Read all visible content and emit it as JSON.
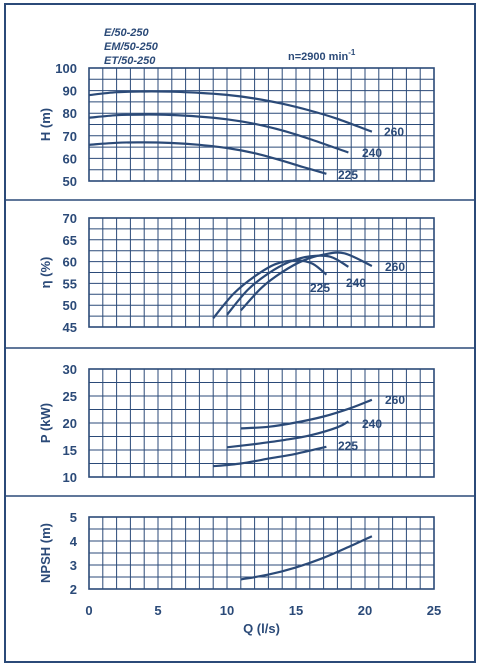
{
  "header": {
    "models": [
      "E/50-250",
      "EM/50-250",
      "ET/50-250"
    ],
    "speed_label": "n=2900 min",
    "speed_superscript": "-1"
  },
  "colors": {
    "frame": "#2b4a78",
    "grid": "#2b4a78",
    "curve": "#2b4a78",
    "text": "#2b4a78",
    "background": "#ffffff"
  },
  "chart_data": [
    {
      "type": "line",
      "ylabel": "H (m)",
      "xlim": [
        0,
        25
      ],
      "ylim": [
        50,
        100
      ],
      "yticks": [
        50,
        60,
        70,
        80,
        90,
        100
      ],
      "series": [
        {
          "name": "260",
          "x": [
            0,
            2,
            4,
            6,
            8,
            10,
            12,
            14,
            16,
            18,
            20.5
          ],
          "y": [
            88,
            89.3,
            89.6,
            89.5,
            89.0,
            88.1,
            86.5,
            84.2,
            81.2,
            77.5,
            71.8
          ]
        },
        {
          "name": "240",
          "x": [
            0,
            2,
            4,
            6,
            8,
            10,
            12,
            14,
            16,
            18.8
          ],
          "y": [
            78,
            79.1,
            79.4,
            79.2,
            78.5,
            77.3,
            75.3,
            72.4,
            68.6,
            62.6
          ]
        },
        {
          "name": "225",
          "x": [
            0,
            2,
            4,
            6,
            8,
            10,
            12,
            14,
            15.5,
            17.2
          ],
          "y": [
            66,
            66.9,
            67.1,
            66.8,
            66.0,
            64.6,
            62.3,
            59.0,
            56.2,
            53.2
          ]
        }
      ]
    },
    {
      "type": "line",
      "ylabel": "η (%)",
      "xlim": [
        0,
        25
      ],
      "ylim": [
        45,
        70
      ],
      "yticks": [
        45,
        50,
        55,
        60,
        65,
        70
      ],
      "series": [
        {
          "name": "260",
          "x": [
            11,
            12.5,
            14,
            15.5,
            17,
            18.5,
            20.5
          ],
          "y": [
            48.8,
            54.0,
            57.6,
            60.2,
            61.6,
            61.9,
            59.0
          ]
        },
        {
          "name": "240",
          "x": [
            10,
            11.5,
            13,
            14.5,
            16,
            17.5,
            18.8
          ],
          "y": [
            47.8,
            53.5,
            57.3,
            59.9,
            61.2,
            61.1,
            58.8
          ]
        },
        {
          "name": "225",
          "x": [
            9,
            10.5,
            12,
            13.5,
            15,
            16.2,
            17.2
          ],
          "y": [
            47.0,
            52.7,
            56.6,
            59.4,
            60.3,
            59.5,
            57.0
          ]
        }
      ]
    },
    {
      "type": "line",
      "ylabel": "P (kW)",
      "xlim": [
        0,
        25
      ],
      "ylim": [
        10,
        30
      ],
      "yticks": [
        10,
        15,
        20,
        25,
        30
      ],
      "series": [
        {
          "name": "260",
          "x": [
            11,
            13,
            15,
            17,
            19,
            20.5
          ],
          "y": [
            19.0,
            19.3,
            20.1,
            21.2,
            22.8,
            24.3
          ]
        },
        {
          "name": "240",
          "x": [
            10,
            12,
            14,
            16,
            18,
            18.8
          ],
          "y": [
            15.5,
            16.1,
            16.8,
            17.7,
            19.2,
            20.3
          ]
        },
        {
          "name": "225",
          "x": [
            9,
            11,
            13,
            15,
            17.2
          ],
          "y": [
            12.0,
            12.5,
            13.4,
            14.3,
            15.6
          ]
        }
      ]
    },
    {
      "type": "line",
      "ylabel": "NPSH (m)",
      "xlabel": "Q (l/s)",
      "xlim": [
        0,
        25
      ],
      "ylim": [
        2,
        5
      ],
      "yticks": [
        2,
        3,
        4,
        5
      ],
      "xticks": [
        0,
        5,
        10,
        15,
        20,
        25
      ],
      "series": [
        {
          "x": [
            11,
            13,
            15,
            17,
            19,
            20.5
          ],
          "y": [
            2.4,
            2.6,
            2.9,
            3.3,
            3.8,
            4.2
          ]
        }
      ]
    }
  ]
}
